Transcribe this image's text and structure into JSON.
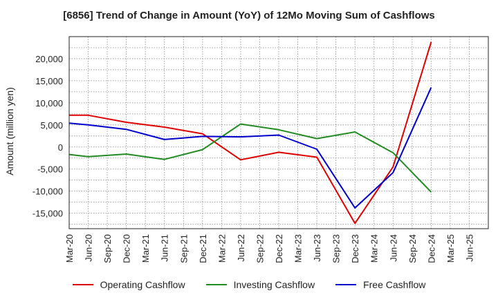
{
  "chart_data": {
    "type": "line",
    "title": "[6856]  Trend of Change in Amount (YoY) of 12Mo Moving Sum of Cashflows",
    "xlabel": "",
    "ylabel": "Amount (million yen)",
    "ylim": [
      -18500,
      25000
    ],
    "yticks": [
      -15000,
      -10000,
      -5000,
      0,
      5000,
      10000,
      15000,
      20000
    ],
    "ytick_labels": [
      "-15,000",
      "-10,000",
      "-5,000",
      "0",
      "5,000",
      "10,000",
      "15,000",
      "20,000"
    ],
    "categories": [
      "Mar-20",
      "Jun-20",
      "Sep-20",
      "Dec-20",
      "Mar-21",
      "Jun-21",
      "Sep-21",
      "Dec-21",
      "Mar-22",
      "Jun-22",
      "Sep-22",
      "Dec-22",
      "Mar-23",
      "Jun-23",
      "Sep-23",
      "Dec-23",
      "Mar-24",
      "Jun-24",
      "Sep-24",
      "Dec-24",
      "Mar-25",
      "Jun-25"
    ],
    "grid": true,
    "legend_position": "bottom",
    "series": [
      {
        "name": "Operating Cashflow",
        "color": "#e00000",
        "values": [
          7200,
          7200,
          null,
          5600,
          null,
          4500,
          null,
          3000,
          null,
          -2900,
          null,
          -1200,
          null,
          -2300,
          null,
          -17300,
          null,
          -4500,
          null,
          23800,
          null,
          null
        ]
      },
      {
        "name": "Investing Cashflow",
        "color": "#228b22",
        "values": [
          -1700,
          -2200,
          null,
          -1600,
          null,
          -2800,
          null,
          -600,
          null,
          5200,
          null,
          3900,
          null,
          1900,
          null,
          3400,
          null,
          -1300,
          null,
          -10200,
          null,
          null
        ]
      },
      {
        "name": "Free Cashflow",
        "color": "#0000cc",
        "values": [
          5400,
          5000,
          null,
          4000,
          null,
          1700,
          null,
          2400,
          null,
          2300,
          null,
          2700,
          null,
          -500,
          null,
          -13800,
          null,
          -5800,
          null,
          13500,
          null,
          null
        ]
      }
    ]
  }
}
